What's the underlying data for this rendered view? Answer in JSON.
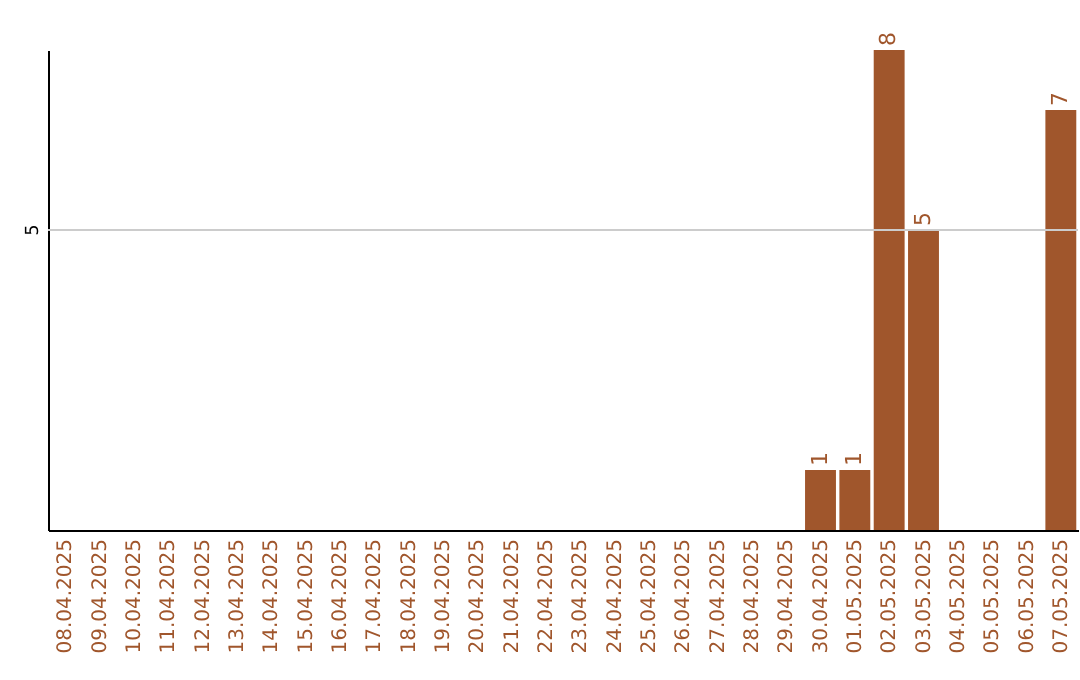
{
  "chart_data": {
    "type": "bar",
    "categories": [
      "08.04.2025",
      "09.04.2025",
      "10.04.2025",
      "11.04.2025",
      "12.04.2025",
      "13.04.2025",
      "14.04.2025",
      "15.04.2025",
      "16.04.2025",
      "17.04.2025",
      "18.04.2025",
      "19.04.2025",
      "20.04.2025",
      "21.04.2025",
      "22.04.2025",
      "23.04.2025",
      "24.04.2025",
      "25.04.2025",
      "26.04.2025",
      "27.04.2025",
      "28.04.2025",
      "29.04.2025",
      "30.04.2025",
      "01.05.2025",
      "02.05.2025",
      "03.05.2025",
      "04.05.2025",
      "05.05.2025",
      "06.05.2025",
      "07.05.2025"
    ],
    "values": [
      null,
      null,
      null,
      null,
      null,
      null,
      null,
      null,
      null,
      null,
      null,
      null,
      null,
      null,
      null,
      null,
      null,
      null,
      null,
      null,
      null,
      null,
      1,
      1,
      8,
      5,
      null,
      null,
      null,
      7
    ],
    "value_labels": [
      null,
      null,
      null,
      null,
      null,
      null,
      null,
      null,
      null,
      null,
      null,
      null,
      null,
      null,
      null,
      null,
      null,
      null,
      null,
      null,
      null,
      null,
      "1",
      "1",
      "8",
      "5",
      null,
      null,
      null,
      "7"
    ],
    "color": "#a0562c",
    "ylim": [
      0,
      8
    ],
    "ref_lines": [
      {
        "axis": "y",
        "value": 5,
        "label": "5",
        "color": "#cccccc"
      }
    ]
  }
}
